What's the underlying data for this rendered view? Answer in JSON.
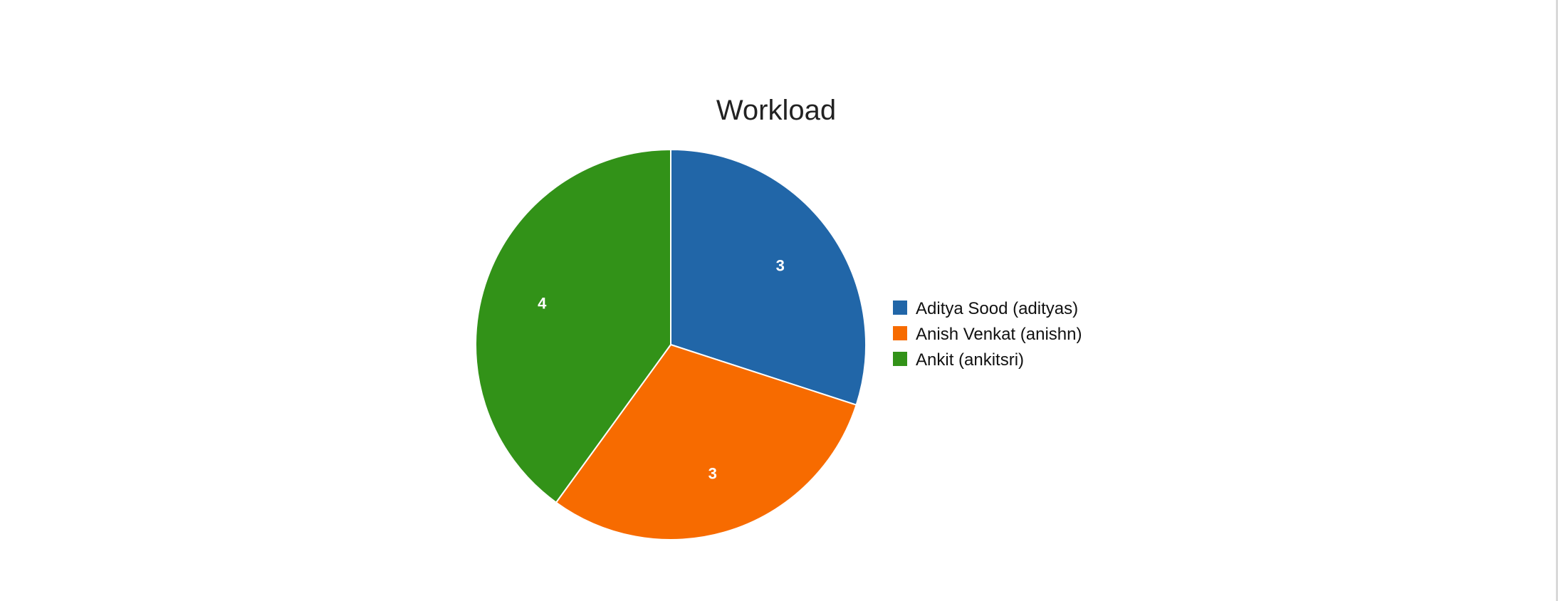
{
  "chart_data": {
    "type": "pie",
    "title": "Workload",
    "categories": [
      "Aditya Sood (adityas)",
      "Anish Venkat (anishn)",
      "Ankit (ankitsri)"
    ],
    "values": [
      3,
      3,
      4
    ],
    "colors": [
      "#2166a8",
      "#f76b00",
      "#329218"
    ],
    "data_labels": [
      "3",
      "3",
      "4"
    ],
    "legend_position": "right",
    "start_angle": "top",
    "direction": "clockwise"
  }
}
